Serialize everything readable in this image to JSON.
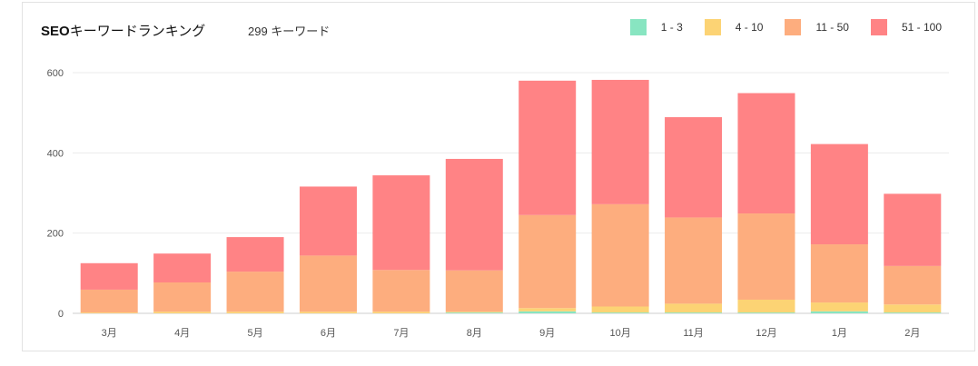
{
  "header": {
    "title_bold": "SEO",
    "title_rest": "キーワードランキング",
    "keyword_count": "299 キーワード"
  },
  "legend": [
    {
      "label": "1 - 3",
      "color": "#88e5c1"
    },
    {
      "label": "4 - 10",
      "color": "#fcd374"
    },
    {
      "label": "11 - 50",
      "color": "#fdad7e"
    },
    {
      "label": "51 - 100",
      "color": "#ff8385"
    }
  ],
  "chart_data": {
    "type": "bar",
    "stacked": true,
    "categories": [
      "3月",
      "4月",
      "5月",
      "6月",
      "7月",
      "8月",
      "9月",
      "10月",
      "11月",
      "12月",
      "1月",
      "2月"
    ],
    "series": [
      {
        "name": "1 - 3",
        "color": "#88e5c1",
        "values": [
          0,
          0,
          0,
          0,
          0,
          2,
          5,
          2,
          2,
          2,
          5,
          2
        ]
      },
      {
        "name": "4 - 10",
        "color": "#fcd374",
        "values": [
          2,
          4,
          4,
          4,
          4,
          2,
          8,
          15,
          22,
          32,
          22,
          20
        ]
      },
      {
        "name": "11 - 50",
        "color": "#fdad7e",
        "values": [
          57,
          73,
          100,
          140,
          104,
          103,
          232,
          255,
          215,
          215,
          145,
          96
        ]
      },
      {
        "name": "51 - 100",
        "color": "#ff8385",
        "values": [
          66,
          72,
          86,
          172,
          236,
          278,
          335,
          310,
          250,
          300,
          250,
          180
        ]
      }
    ],
    "yticks": [
      0,
      200,
      400,
      600
    ],
    "ylim": [
      0,
      600
    ],
    "grid": true,
    "legend_position": "top-right"
  }
}
